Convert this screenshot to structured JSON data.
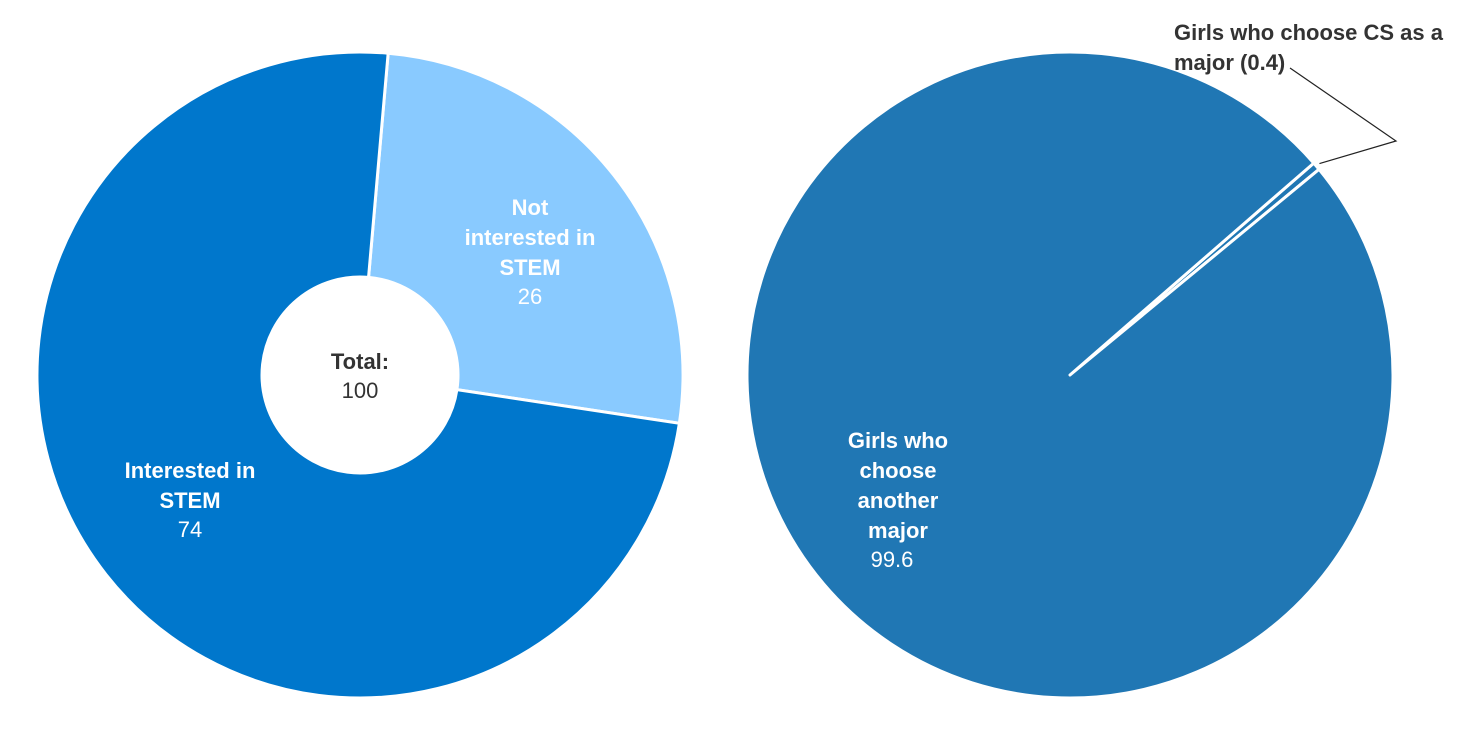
{
  "chart_data": [
    {
      "type": "pie",
      "variant": "donut",
      "center_label": {
        "title": "Total:",
        "value": "100"
      },
      "slices": [
        {
          "label": "Not interested in STEM",
          "value": 26,
          "color": "#89caff",
          "label_lines": [
            "Not",
            "interested in",
            "STEM"
          ]
        },
        {
          "label": "Interested in STEM",
          "value": 74,
          "color": "#0077cc",
          "label_lines": [
            "Interested in",
            "STEM"
          ]
        }
      ],
      "separator_color": "#ffffff"
    },
    {
      "type": "pie",
      "slices": [
        {
          "label": "Girls who choose CS as a major",
          "value": 0.4,
          "color": "#2077b4",
          "label_lines": [
            "Girls who choose CS as a",
            "major (0.4)"
          ],
          "callout": true
        },
        {
          "label": "Girls who choose another major",
          "value": 99.6,
          "color": "#2077b4",
          "label_lines": [
            "Girls who",
            "choose",
            "another",
            "major"
          ]
        }
      ],
      "separator_color": "#ffffff"
    }
  ]
}
